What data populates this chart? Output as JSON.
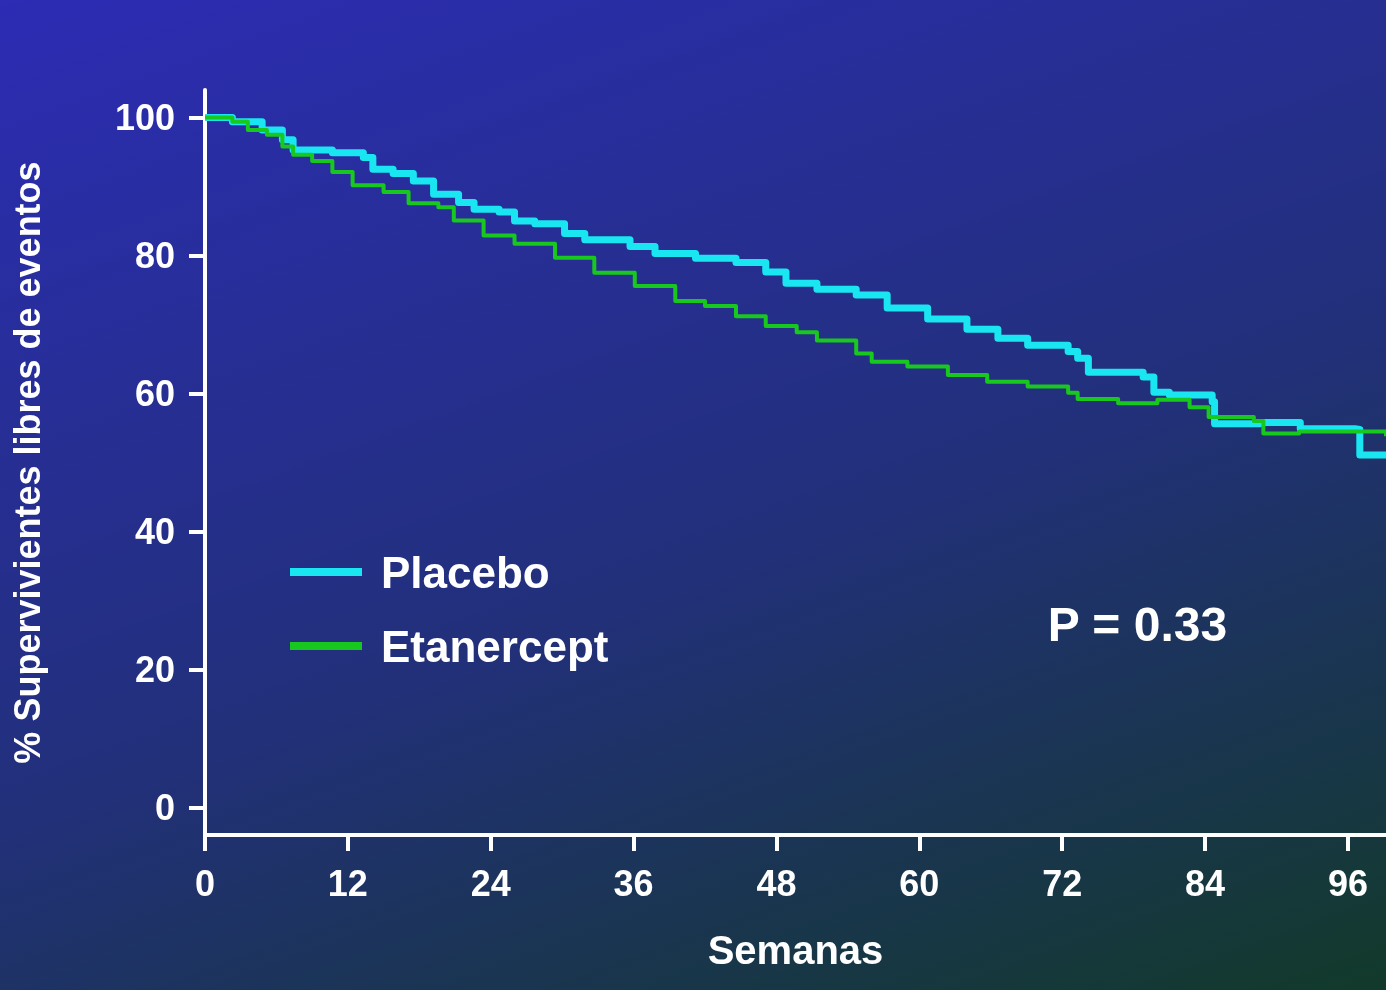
{
  "chart_data": {
    "type": "step",
    "xlabel": "Semanas",
    "ylabel": "% Supervivientes libres de eventos",
    "xlim": [
      0,
      99.2
    ],
    "xticks": [
      0,
      12,
      24,
      36,
      48,
      60,
      72,
      84,
      96
    ],
    "ylim": [
      -4,
      104
    ],
    "yticks": [
      0,
      20,
      40,
      60,
      80,
      100
    ],
    "grid": false,
    "legend": "left",
    "marker": "none",
    "line_style": "solid",
    "annotations": [
      "P = 0.33"
    ],
    "series": [
      {
        "name": "Placebo",
        "color": "#19e6f0",
        "x": [
          0,
          2.3,
          4.8,
          6.5,
          7.4,
          10.7,
          13.3,
          14.1,
          15.8,
          17.5,
          19.2,
          21.3,
          22.6,
          24.7,
          26,
          27.7,
          30.2,
          31.9,
          35.7,
          37.8,
          41.2,
          44.6,
          47.1,
          48.8,
          51.4,
          54.7,
          57.3,
          60.7,
          64,
          66.6,
          69.1,
          72.5,
          73.3,
          74.2,
          76.7,
          78.8,
          79.7,
          81,
          83.9,
          84.6,
          84.8,
          88.6,
          92,
          96.6,
          97,
          99.2
        ],
        "values": [
          100,
          99.4,
          98.2,
          96.8,
          95.3,
          94.9,
          94.2,
          92.5,
          91.9,
          90.8,
          88.9,
          87.7,
          86.7,
          86.3,
          85,
          84.6,
          83.2,
          82.3,
          81.3,
          80.3,
          79.6,
          79,
          77.6,
          76,
          75.1,
          74.3,
          72.4,
          70.8,
          69.3,
          68,
          67,
          66.1,
          65.1,
          63.1,
          63.1,
          62.4,
          60.2,
          59.8,
          59.8,
          58.8,
          55.6,
          55.8,
          54.9,
          54.8,
          51.1,
          51.1
        ]
      },
      {
        "name": "Etanercept",
        "color": "#19c81e",
        "x": [
          0,
          2.3,
          3.6,
          5.2,
          6.5,
          7.4,
          9,
          10.7,
          12.4,
          15,
          17.1,
          19.6,
          20.9,
          23.4,
          26,
          29.4,
          32.7,
          36.1,
          39.5,
          42,
          44.6,
          47.1,
          49.7,
          51.4,
          54.7,
          56,
          59,
          62.4,
          65.7,
          69.1,
          72.5,
          73.3,
          76.7,
          80,
          82.7,
          84.3,
          88.1,
          88.9,
          91.9,
          99.2
        ],
        "values": [
          100,
          99.4,
          98.2,
          97.5,
          95.8,
          94.6,
          93.7,
          92.1,
          90.2,
          89.2,
          87.6,
          87,
          85.1,
          82.9,
          81.7,
          79.7,
          77.5,
          75.6,
          73.4,
          72.7,
          71.2,
          69.8,
          68.9,
          67.7,
          65.8,
          64.6,
          63.9,
          62.7,
          61.7,
          61,
          60.1,
          59.2,
          58.6,
          59.1,
          58,
          56.6,
          56,
          54.2,
          54.5,
          53.8
        ]
      }
    ]
  }
}
